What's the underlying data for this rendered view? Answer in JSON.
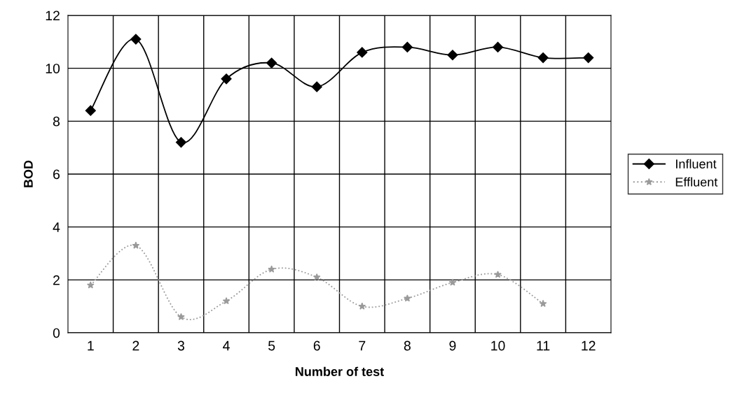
{
  "chart_data": {
    "type": "line",
    "xlabel": "Number of test",
    "ylabel": "BOD",
    "categories": [
      "1",
      "2",
      "3",
      "4",
      "5",
      "6",
      "7",
      "8",
      "9",
      "10",
      "11",
      "12"
    ],
    "series": [
      {
        "name": "Influent",
        "color": "#000000",
        "marker": "diamond",
        "line_style": "solid",
        "values": [
          8.4,
          11.1,
          7.2,
          9.6,
          10.2,
          9.3,
          10.6,
          10.8,
          10.5,
          10.8,
          10.4,
          10.4
        ]
      },
      {
        "name": "Effluent",
        "color": "#9a9a9a",
        "marker": "star",
        "line_style": "dotted",
        "values": [
          1.8,
          3.3,
          0.6,
          1.2,
          2.4,
          2.1,
          1.0,
          1.3,
          1.9,
          2.2,
          1.1,
          null
        ]
      }
    ],
    "ylim": [
      0,
      12
    ],
    "yticks": [
      0,
      2,
      4,
      6,
      8,
      10,
      12
    ],
    "grid": true,
    "legend": "right"
  }
}
